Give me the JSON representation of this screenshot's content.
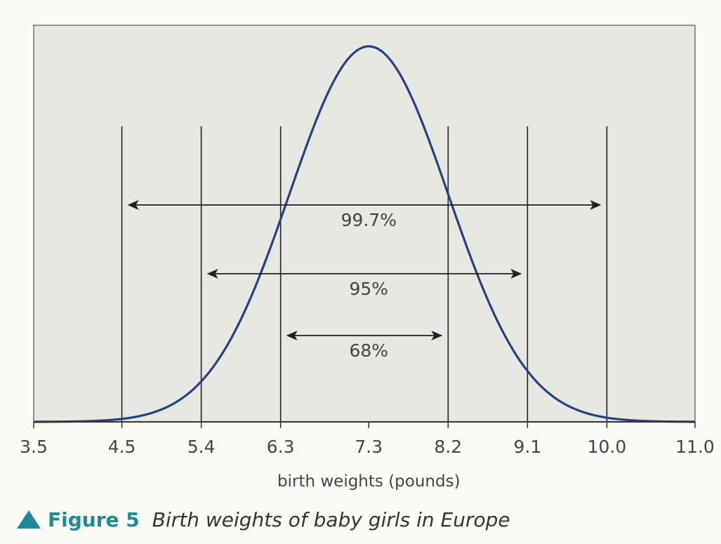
{
  "chart_data": {
    "type": "line",
    "title": "Birth weights of baby girls in Europe",
    "xlabel": "birth weights (pounds)",
    "ylabel": "",
    "x_ticks": [
      3.5,
      4.5,
      5.4,
      6.3,
      7.3,
      8.2,
      9.1,
      10.0,
      11.0
    ],
    "x_tick_labels": [
      "3.5",
      "4.5",
      "5.4",
      "6.3",
      "7.3",
      "8.2",
      "9.1",
      "10.0",
      "11.0"
    ],
    "xlim": [
      3.5,
      11.0
    ],
    "mean": 7.3,
    "sd": 0.9,
    "vertical_lines": [
      4.5,
      5.4,
      6.3,
      8.2,
      9.1,
      10.0
    ],
    "intervals": [
      {
        "label": "99.7%",
        "from": 4.5,
        "to": 10.0
      },
      {
        "label": "95%",
        "from": 5.4,
        "to": 9.1
      },
      {
        "label": "68%",
        "from": 6.3,
        "to": 8.2
      }
    ],
    "grid": false,
    "colors": {
      "curve": "#22418b",
      "plot_background": "#e7e8e2",
      "lines": "#222222"
    }
  },
  "caption": {
    "label": "Figure 5",
    "text": "Birth weights of baby girls in Europe",
    "marker_icon": "triangle-up-icon",
    "accent_color": "#1e8a97"
  }
}
